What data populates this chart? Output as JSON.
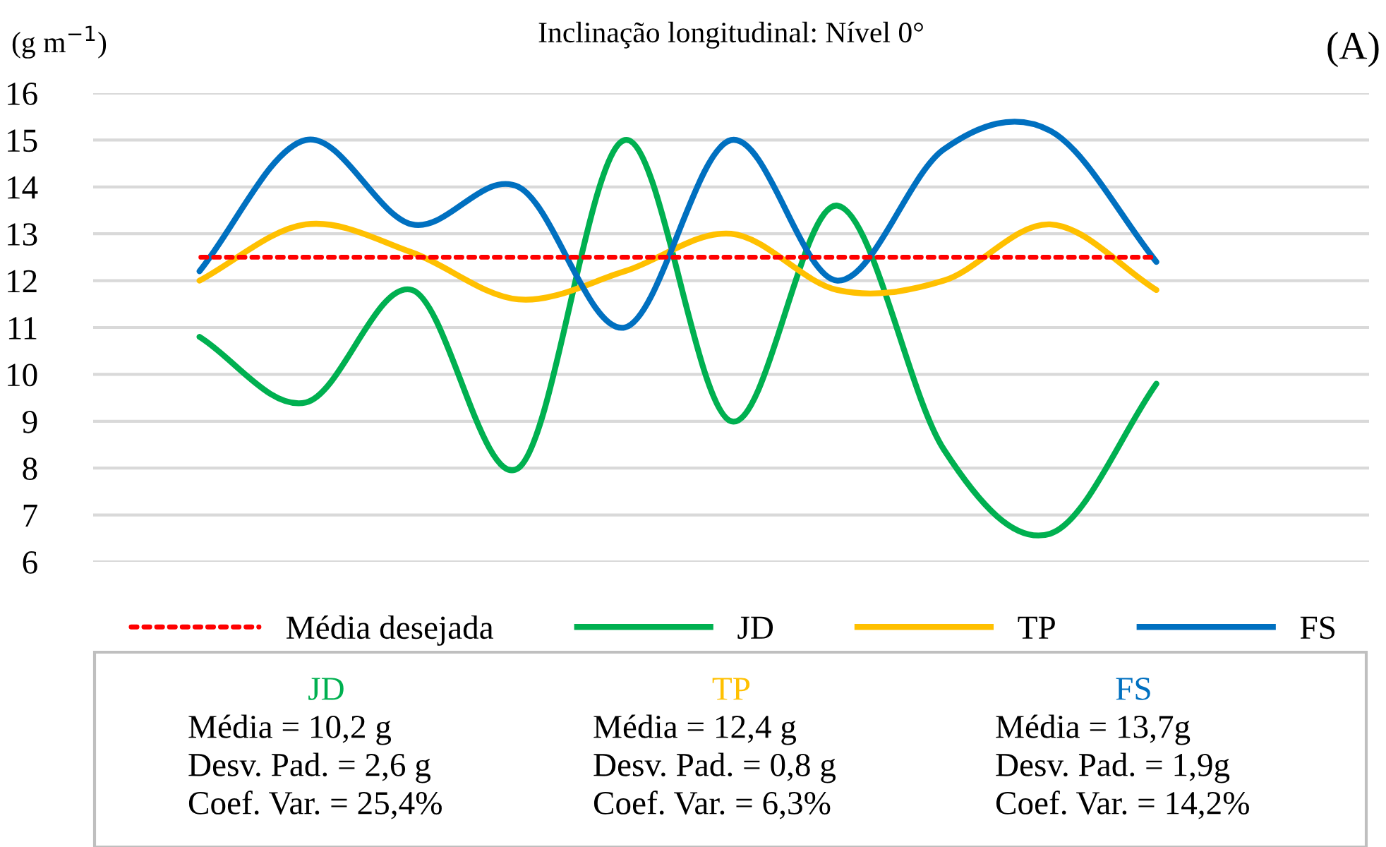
{
  "chart_data": {
    "type": "line",
    "title": "Inclinação longitudinal: Nível 0°",
    "ylabel": "(g m$^{−1}$)",
    "categories": [
      null,
      null,
      null,
      null,
      null,
      null,
      null,
      null,
      null,
      null,
      null,
      null,
      null
    ],
    "series": [
      {
        "name": "Média desejada",
        "color": "#ff0000",
        "line_style": "dotted",
        "values": [
          null,
          12.5,
          12.5,
          12.5,
          12.5,
          12.5,
          12.5,
          12.5,
          12.5,
          12.5,
          12.5,
          null,
          null
        ]
      },
      {
        "name": "JD",
        "color": "#00b050",
        "values": [
          null,
          10.8,
          9.4,
          11.8,
          8.0,
          15.0,
          9.0,
          13.6,
          8.4,
          6.6,
          9.8,
          null,
          null
        ]
      },
      {
        "name": "TP",
        "color": "#ffc000",
        "values": [
          null,
          12.0,
          13.2,
          12.6,
          11.6,
          12.2,
          13.0,
          11.8,
          12.0,
          13.2,
          11.8,
          null,
          null
        ]
      },
      {
        "name": "FS",
        "color": "#0070c0",
        "values": [
          null,
          12.2,
          15.0,
          13.2,
          14.0,
          11.0,
          15.0,
          12.0,
          14.8,
          15.2,
          12.4,
          null,
          null
        ]
      }
    ],
    "ylim": [
      6,
      16
    ],
    "yticks": [
      6,
      7,
      8,
      9,
      10,
      11,
      12,
      13,
      14,
      15,
      16
    ],
    "grid": "y",
    "legend": "bottom",
    "tick_labels": "y",
    "annotations": [
      "(A)",
      "JD",
      "Média = 10,2 g",
      "Desv. Pad. = 2,6 g",
      "Coef. Var. = 25,4%",
      "TP",
      "Média = 12,4 g",
      "Desv. Pad. = 0,8 g",
      "Coef. Var. = 6,3%",
      "FS",
      "Média = 13,7g",
      "Desv. Pad. = 1,9g",
      "Coef. Var. = 14,2%"
    ]
  }
}
